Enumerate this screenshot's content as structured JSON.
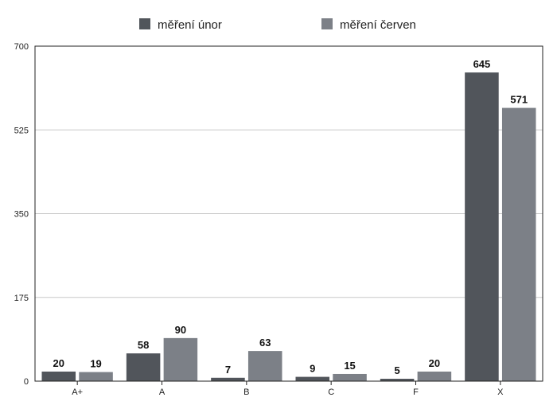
{
  "chart_data": {
    "type": "bar",
    "categories": [
      "A+",
      "A",
      "B",
      "C",
      "F",
      "X"
    ],
    "series": [
      {
        "name": "měření únor",
        "color": "#51555b",
        "values": [
          20,
          58,
          7,
          9,
          5,
          645
        ]
      },
      {
        "name": "měření červen",
        "color": "#7c8087",
        "values": [
          19,
          90,
          63,
          15,
          20,
          571
        ]
      }
    ],
    "ylim": [
      0,
      700
    ],
    "yticks": [
      0,
      175,
      350,
      525,
      700
    ],
    "grid": true,
    "legend_position": "top",
    "title": "",
    "xlabel": "",
    "ylabel": ""
  }
}
